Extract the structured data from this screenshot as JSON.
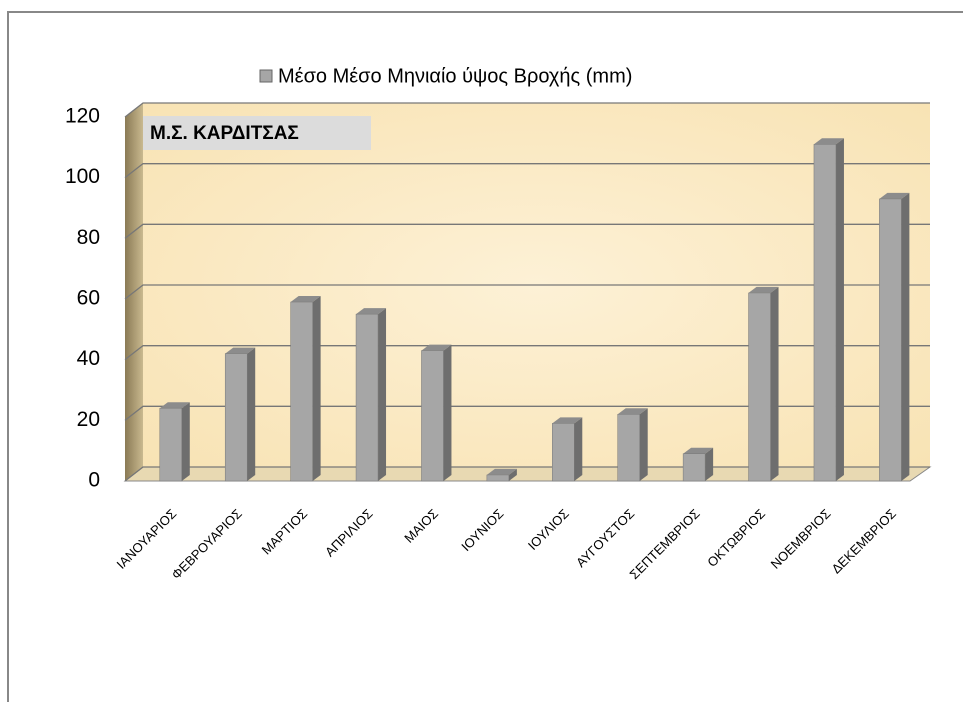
{
  "chart_data": {
    "type": "bar",
    "legend": "Μέσο Μέσο Μηνιαίο ύψος Βροχής (mm)",
    "annotation": "Μ.Σ. ΚΑΡΔΙΤΣΑΣ",
    "categories": [
      "ΙΑΝΟΥΑΡΙΟΣ",
      "ΦΕΒΡΟΥΑΡΙΟΣ",
      "ΜΑΡΤΙΟΣ",
      "ΑΠΡΙΛΙΟΣ",
      "ΜΑΙΟΣ",
      "ΙΟΥΝΙΟΣ",
      "ΙΟΥΛΙΟΣ",
      "ΑΥΓΟΥΣΤΟΣ",
      "ΣΕΠΤΕΜΒΡΙΟΣ",
      "ΟΚΤΩΒΡΙΟΣ",
      "ΝΟΕΜΒΡΙΟΣ",
      "ΔΕΚΕΜΒΡΙΟΣ"
    ],
    "values": [
      24,
      42,
      59,
      55,
      43,
      2,
      19,
      22,
      9,
      62,
      111,
      93
    ],
    "color": "#a6a6a6",
    "ylim": [
      0,
      120
    ],
    "yticks": [
      0,
      20,
      40,
      60,
      80,
      100,
      120
    ],
    "grid": true
  }
}
